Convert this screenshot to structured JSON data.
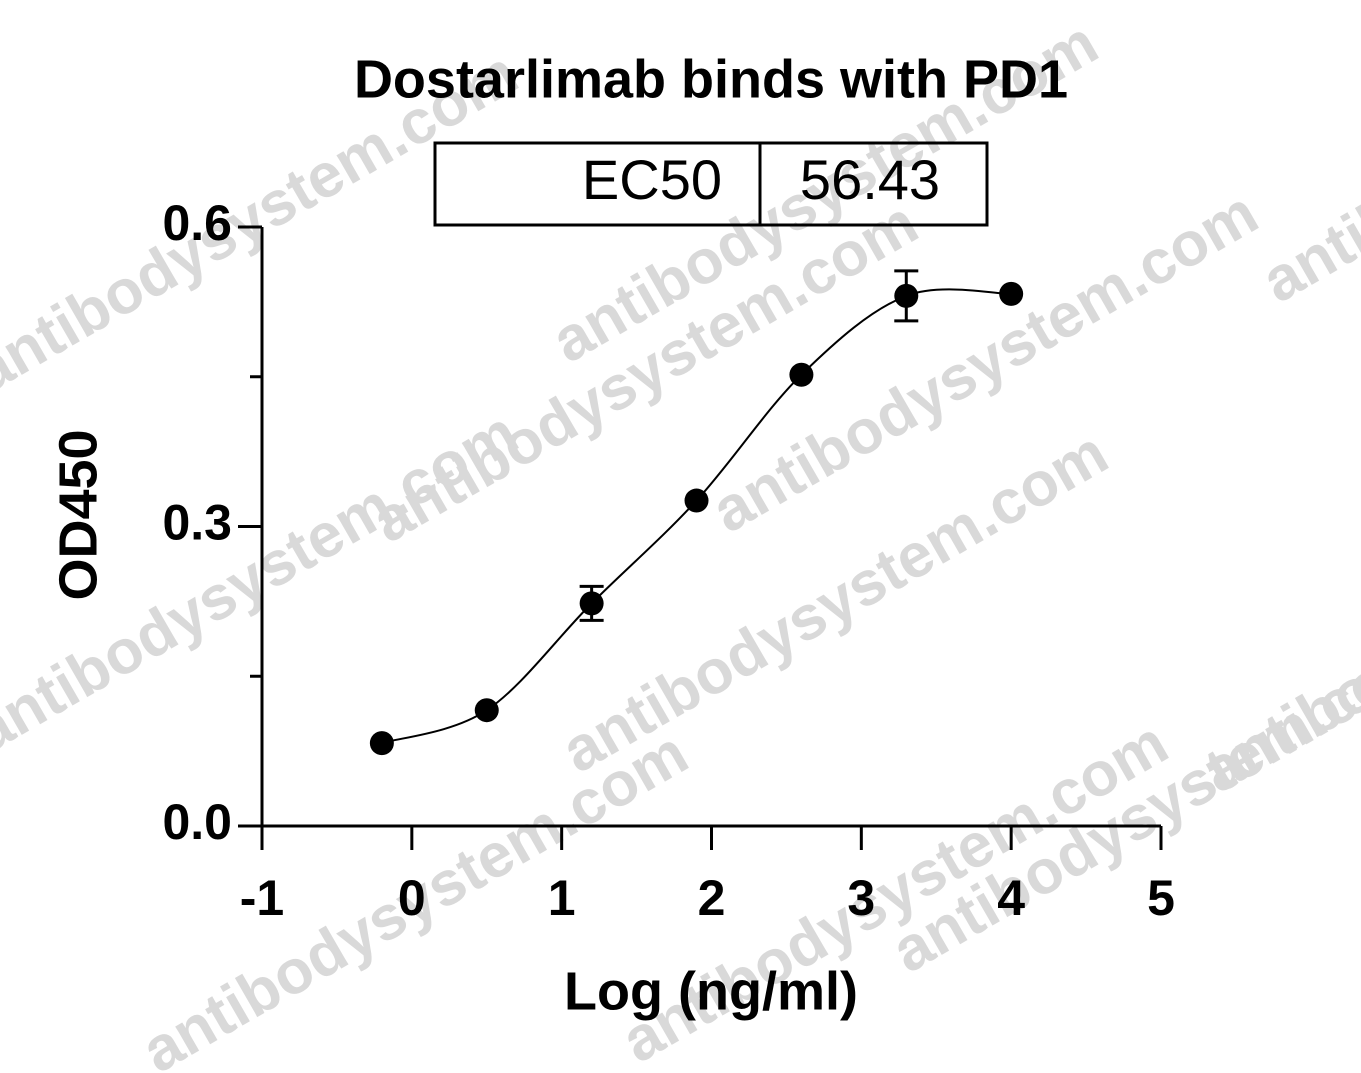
{
  "chart_data": {
    "type": "scatter",
    "title": "Dostarlimab binds with PD1",
    "ec50_label": "EC50",
    "ec50_value": 56.43,
    "x_label": "Log (ng/ml)",
    "y_label": "OD450",
    "x": [
      -0.2,
      0.5,
      1.2,
      1.9,
      2.6,
      3.3,
      4.0
    ],
    "values": [
      0.083,
      0.116,
      0.223,
      0.326,
      0.452,
      0.531,
      0.533
    ],
    "errors": [
      null,
      null,
      0.017,
      null,
      null,
      0.025,
      null
    ],
    "color": "#000000",
    "xlim": [
      -1,
      5
    ],
    "xticks": [
      -1,
      0,
      1,
      2,
      3,
      4,
      5
    ],
    "ylim": [
      0,
      0.6
    ],
    "yticks": [
      {
        "value": 0,
        "label": "0.0"
      },
      {
        "value": 0.3,
        "label": "0.3"
      },
      {
        "value": 0.6,
        "label": "0.6"
      }
    ],
    "yminor_ticks": [
      0.15,
      0.45
    ],
    "watermark": "antibodysystem.com"
  }
}
